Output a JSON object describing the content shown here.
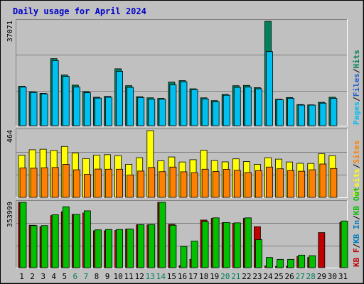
{
  "chart_data": {
    "type": "bar",
    "title": "Daily usage for April 2024",
    "categories": [
      "1",
      "2",
      "3",
      "4",
      "5",
      "6",
      "7",
      "8",
      "9",
      "10",
      "11",
      "12",
      "13",
      "14",
      "15",
      "16",
      "17",
      "18",
      "19",
      "20",
      "21",
      "22",
      "23",
      "24",
      "25",
      "26",
      "27",
      "28",
      "29",
      "30",
      "31"
    ],
    "weekend_days": [
      "6",
      "7",
      "13",
      "14",
      "20",
      "21",
      "27",
      "28"
    ],
    "panels": [
      {
        "id": "hits",
        "ymax": 37071,
        "ymax_label": "37071",
        "legend": [
          "Pages",
          "Files",
          "Hits"
        ],
        "legend_colors": [
          "#00C0F0",
          "#2060D0",
          "#00805C"
        ],
        "series": [
          {
            "name": "Hits",
            "color": "#00805C",
            "values": [
              14000,
              12000,
              11500,
              23800,
              18000,
              14400,
              12100,
              10100,
              10400,
              20200,
              14200,
              10300,
              9900,
              9700,
              15500,
              16000,
              13100,
              9900,
              8900,
              11100,
              14200,
              14300,
              13500,
              37071,
              9400,
              10000,
              7500,
              7400,
              8300,
              10100,
              0
            ]
          },
          {
            "name": "Pages",
            "color": "#00C0F0",
            "values": [
              13700,
              11800,
              11300,
              23100,
              17500,
              13700,
              11700,
              9800,
              10100,
              19300,
              13600,
              10000,
              9400,
              9400,
              14500,
              15600,
              12800,
              9500,
              8500,
              10800,
              13600,
              13700,
              13100,
              26300,
              9200,
              9700,
              7300,
              7300,
              8000,
              9700,
              0
            ]
          }
        ]
      },
      {
        "id": "visits",
        "ymax": 464,
        "ymax_label": "464",
        "legend": [
          "Visits",
          "Sites"
        ],
        "legend_colors": [
          "#FFFF00",
          "#FF8000"
        ],
        "series": [
          {
            "name": "Visits",
            "color": "#FFFF00",
            "values": [
              293,
              331,
              335,
              326,
              354,
              309,
              270,
              293,
              297,
              290,
              230,
              276,
              464,
              254,
              281,
              246,
              262,
              328,
              256,
              247,
              268,
              249,
              230,
              276,
              266,
              246,
              237,
              236,
              303,
              290,
              0
            ]
          },
          {
            "name": "Sites",
            "color": "#FF8000",
            "values": [
              204,
              203,
              206,
              208,
              230,
              192,
              160,
              197,
              196,
              196,
              155,
              183,
              208,
              179,
              211,
              178,
              172,
              196,
              180,
              195,
              188,
              173,
              186,
              211,
              199,
              187,
              182,
              192,
              232,
              201,
              0
            ]
          }
        ]
      },
      {
        "id": "kbytes",
        "ymax": 353999,
        "ymax_label": "353999",
        "legend": [
          "KB F",
          "KB In",
          "KB Out"
        ],
        "legend_colors": [
          "#C00000",
          "#0080C0",
          "#00C000"
        ],
        "series": [
          {
            "name": "KB F",
            "color": "#C00000",
            "values": [
              353999,
              230000,
              222000,
              282000,
              303000,
              289000,
              296000,
              200000,
              200000,
              202000,
              209000,
              233000,
              232000,
              353999,
              235000,
              11000,
              45000,
              258000,
              267000,
              244000,
              240000,
              267000,
              222000,
              10000,
              7000,
              7000,
              60000,
              55000,
              190000,
              0,
              245000
            ]
          },
          {
            "name": "KB Out",
            "color": "#00C000",
            "values": [
              353999,
              228000,
              228000,
              287000,
              330000,
              289000,
              308000,
              205000,
              207000,
              207000,
              209000,
              233000,
              234000,
              353999,
              230000,
              115000,
              144000,
              250000,
              270000,
              245000,
              243000,
              270000,
              152000,
              55000,
              45000,
              45000,
              68000,
              65000,
              0,
              0,
              253000
            ]
          }
        ]
      }
    ],
    "vertical_legend_separator": "/",
    "grid": true
  }
}
